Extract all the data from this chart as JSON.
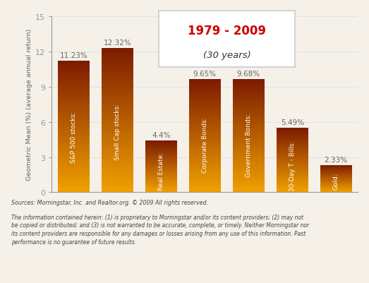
{
  "categories": [
    "S&P 500 stocks:",
    "Small Cap stocks:",
    "Real Estate:",
    "Corporate Bonds:",
    "Government Bonds:",
    "30-Day T - Bills:",
    "Gold:"
  ],
  "values": [
    11.23,
    12.32,
    4.4,
    9.65,
    9.68,
    5.49,
    2.33
  ],
  "labels": [
    "11.23%",
    "12.32%",
    "4.4%",
    "9.65%",
    "9.68%",
    "5.49%",
    "2.33%"
  ],
  "bar_color_top": "#7B1A00",
  "bar_color_bottom": "#F0A000",
  "ylabel": "Geometric Mean (%) (average annual return)",
  "ylim": [
    0,
    15
  ],
  "yticks": [
    0,
    3,
    6,
    9,
    12,
    15
  ],
  "title_year": "1979 - 2009",
  "title_sub": "(30 years)",
  "title_color": "#CC0000",
  "title_box_edge": "#CCCCCC",
  "title_box_face": "#FFFFFF",
  "footnote1": "Sources: Morningstar, Inc. and Realtor.org. © 2009 All rights reserved.",
  "footnote2": "The information contained herein: (1) is proprietary to Morningstar and/or its content providers; (2) may not\nbe copied or distributed; and (3) is not warranted to be accurate, complete, or timely. Neither Morningstar nor\nits content providers are responsible for any damages or losses arising from any use of this information. Past\nperformance is no guarantee of future results.",
  "bg_color": "#F5F0E8",
  "label_color": "#666666",
  "spine_color": "#999999"
}
